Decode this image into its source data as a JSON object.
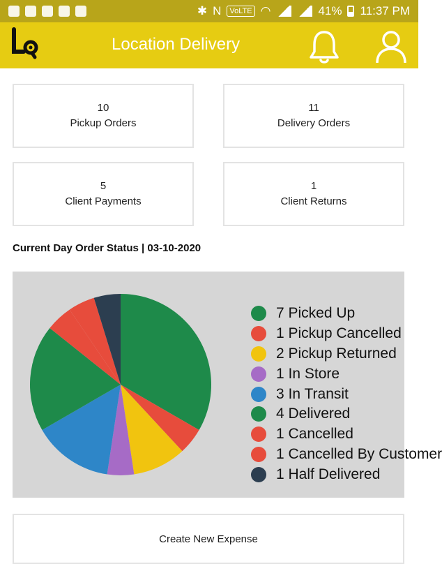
{
  "status_bar": {
    "battery": "41%",
    "time": "11:37 PM",
    "network": "VoLTE"
  },
  "app_bar": {
    "title": "Location Delivery",
    "icons": [
      "logo",
      "bell-icon",
      "user-icon"
    ],
    "bg_color": "#e6cc12"
  },
  "cards": [
    {
      "value": "10",
      "label": "Pickup Orders"
    },
    {
      "value": "11",
      "label": "Delivery Orders"
    },
    {
      "value": "5",
      "label": "Client Payments"
    },
    {
      "value": "1",
      "label": "Client Returns"
    }
  ],
  "section": {
    "title": "Current Day Order Status | 03-10-2020"
  },
  "chart_data": {
    "type": "pie",
    "slices": [
      {
        "label": "7 Picked Up",
        "value": 7,
        "color": "#1e8a4a"
      },
      {
        "label": "1 Pickup Cancelled",
        "value": 1,
        "color": "#e74c3c"
      },
      {
        "label": "2 Pickup Returned",
        "value": 2,
        "color": "#f1c40f"
      },
      {
        "label": "1 In Store",
        "value": 1,
        "color": "#a66bc6"
      },
      {
        "label": "3 In Transit",
        "value": 3,
        "color": "#2e86c8"
      },
      {
        "label": "4 Delivered",
        "value": 4,
        "color": "#1e8a4a"
      },
      {
        "label": "1 Cancelled",
        "value": 1,
        "color": "#e74c3c"
      },
      {
        "label": "1 Cancelled By Customer",
        "value": 1,
        "color": "#e74c3c"
      },
      {
        "label": "1 Half Delivered",
        "value": 1,
        "color": "#2c3e50"
      }
    ],
    "legend_position": "right"
  },
  "actions": {
    "create_expense": "Create New Expense"
  }
}
